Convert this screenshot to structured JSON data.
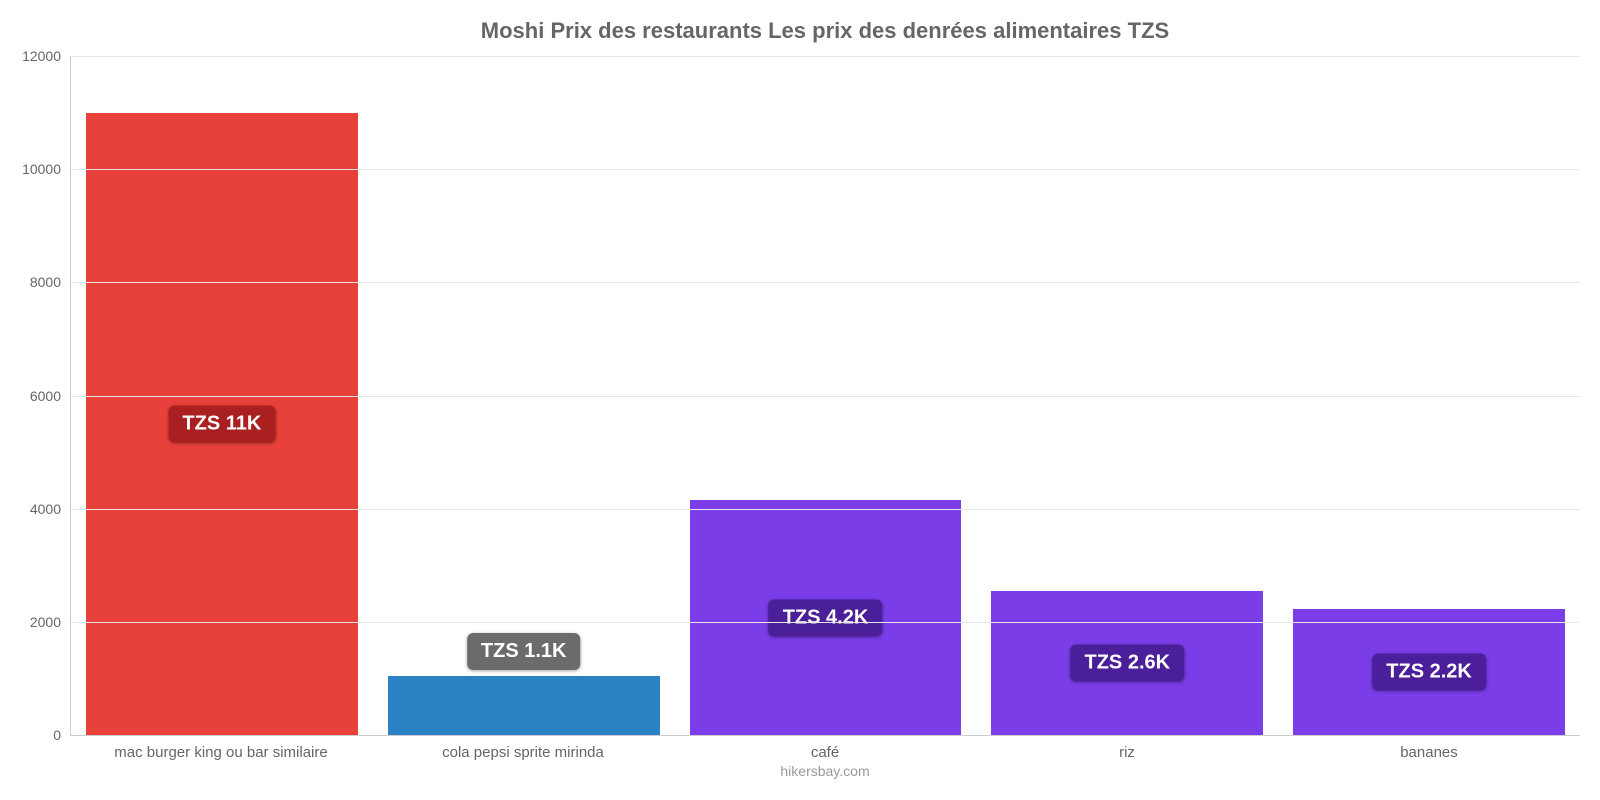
{
  "chart": {
    "type": "bar",
    "title": "Moshi Prix des restaurants Les prix des denrées alimentaires TZS",
    "title_fontsize": 22,
    "title_color": "#666666",
    "attribution": "hikersbay.com",
    "background_color": "#ffffff",
    "grid_color": "#e6e6e6",
    "axis_color": "#cccccc",
    "tick_color": "#666666",
    "bar_width_pct": 90,
    "y": {
      "min": 0,
      "max": 12000,
      "step": 2000,
      "ticks": [
        0,
        2000,
        4000,
        6000,
        8000,
        10000,
        12000
      ]
    },
    "value_label_fontsize": 20,
    "x_label_fontsize": 15,
    "categories": [
      {
        "label": "mac burger king ou bar similaire",
        "value": 11000,
        "display_value": "TZS 11K",
        "bar_color": "#e8403a",
        "label_bg": "#aa1f1f",
        "label_text": "#ffffff",
        "label_position": "center"
      },
      {
        "label": "cola pepsi sprite mirinda",
        "value": 1050,
        "display_value": "TZS 1.1K",
        "bar_color": "#2a81c4",
        "label_bg": "#6b6b6b",
        "label_text": "#ffffff",
        "label_position": "above"
      },
      {
        "label": "café",
        "value": 4150,
        "display_value": "TZS 4.2K",
        "bar_color": "#7a3de8",
        "label_bg": "#4a1f99",
        "label_text": "#ffffff",
        "label_position": "center"
      },
      {
        "label": "riz",
        "value": 2550,
        "display_value": "TZS 2.6K",
        "bar_color": "#7a3de8",
        "label_bg": "#4a1f99",
        "label_text": "#ffffff",
        "label_position": "center"
      },
      {
        "label": "bananes",
        "value": 2220,
        "display_value": "TZS 2.2K",
        "bar_color": "#7a3de8",
        "label_bg": "#4a1f99",
        "label_text": "#ffffff",
        "label_position": "center"
      }
    ]
  }
}
